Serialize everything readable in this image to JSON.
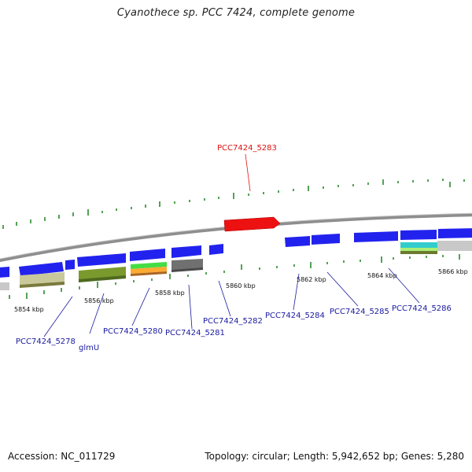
{
  "title": "Cyanothece sp. PCC 7424, complete genome",
  "footer": {
    "accession": "Accession: NC_011729",
    "summary": "Topology: circular; Length: 5,942,652 bp; Genes: 5,280"
  },
  "colors": {
    "backbone": "#8a8a8a",
    "gene_forward": "#1a1ae6",
    "highlight_gene": "#ee1111",
    "tick": "#2a8a2a",
    "label_blue": "#1a1aa0",
    "label_red": "#dd1111"
  },
  "scale_labels": [
    "5854 kbp",
    "5856 kbp",
    "5858 kbp",
    "5860 kbp",
    "5862 kbp",
    "5864 kbp",
    "5866 kbp"
  ],
  "gene_labels": [
    {
      "text": "PCC7424_5283",
      "highlight": true
    },
    {
      "text": "PCC7424_5278",
      "highlight": false
    },
    {
      "text": "glmU",
      "highlight": false
    },
    {
      "text": "PCC7424_5280",
      "highlight": false
    },
    {
      "text": "PCC7424_5281",
      "highlight": false
    },
    {
      "text": "PCC7424_5282",
      "highlight": false
    },
    {
      "text": "PCC7424_5284",
      "highlight": false
    },
    {
      "text": "PCC7424_5285",
      "highlight": false
    },
    {
      "text": "PCC7424_5286",
      "highlight": false
    }
  ]
}
